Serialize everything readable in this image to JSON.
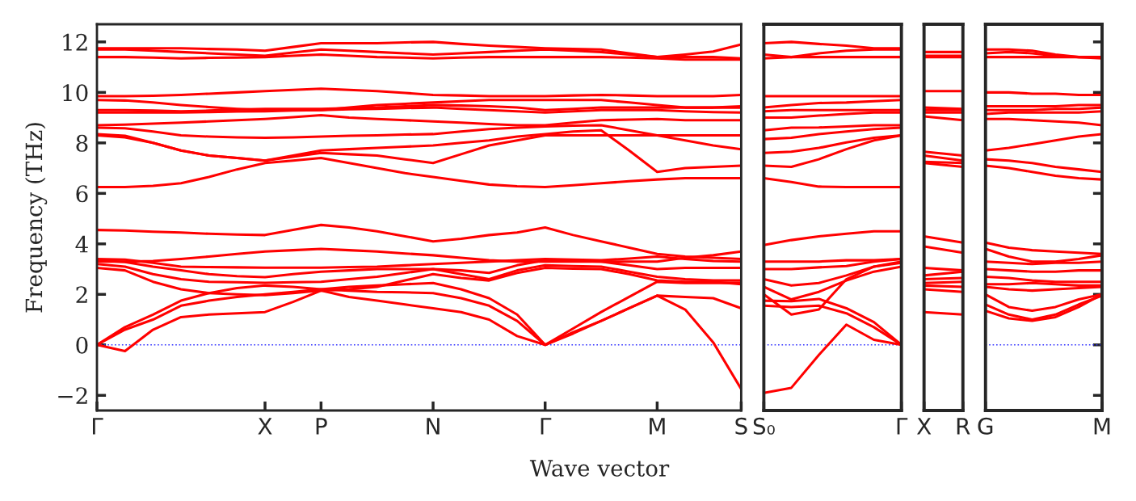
{
  "chart_data": [
    {
      "type": "line",
      "ylabel": "Frequency (THz)",
      "xlabel": "Wave vector",
      "categories": [
        "Γ",
        null,
        null,
        null,
        null,
        null,
        "X",
        null,
        "P",
        null,
        null,
        null,
        "N",
        null,
        null,
        null,
        "Γ",
        null,
        null,
        null,
        "M",
        null,
        null,
        "S"
      ],
      "ylim": [
        -2.6,
        12.7
      ],
      "yticks": [
        -2,
        0,
        2,
        4,
        6,
        8,
        10,
        12
      ],
      "ref_lines": [
        {
          "axis": "y",
          "value": 0,
          "color": "#3333ff",
          "line_style": "dotted"
        }
      ],
      "series": [
        {
          "color": "#ff0000",
          "values": [
            0,
            -0.25,
            0.6,
            1.1,
            1.2,
            1.25,
            1.3,
            1.7,
            2.15,
            1.9,
            1.75,
            1.6,
            1.45,
            1.3,
            1.0,
            0.35,
            0,
            0.45,
            0.95,
            1.45,
            1.95,
            1.4,
            0.1,
            -1.75
          ]
        },
        {
          "color": "#ff0000",
          "values": [
            0,
            0.6,
            1.0,
            1.55,
            1.75,
            1.9,
            2.0,
            2.1,
            2.2,
            2.15,
            2.1,
            2.08,
            2.05,
            1.85,
            1.55,
            0.95,
            0,
            0.5,
            0.95,
            1.45,
            1.95,
            1.9,
            1.85,
            1.45
          ]
        },
        {
          "color": "#ff0000",
          "values": [
            0,
            0.7,
            1.2,
            1.75,
            2.05,
            2.25,
            2.35,
            2.3,
            2.2,
            2.3,
            2.35,
            2.4,
            2.45,
            2.2,
            1.85,
            1.2,
            0,
            0.65,
            1.3,
            1.9,
            2.5,
            2.45,
            2.45,
            2.45
          ]
        },
        {
          "color": "#ff0000",
          "values": [
            3.05,
            2.95,
            2.5,
            2.2,
            2.05,
            2.0,
            1.97,
            2.05,
            2.15,
            2.2,
            2.3,
            2.55,
            2.8,
            2.65,
            2.55,
            2.85,
            3.05,
            3.02,
            3.0,
            2.8,
            2.55,
            2.5,
            2.5,
            2.4
          ]
        },
        {
          "color": "#ff0000",
          "values": [
            3.2,
            3.1,
            2.8,
            2.6,
            2.5,
            2.48,
            2.46,
            2.48,
            2.5,
            2.6,
            2.7,
            2.85,
            3.0,
            2.8,
            2.6,
            2.95,
            3.15,
            3.12,
            3.1,
            2.9,
            2.7,
            2.6,
            2.55,
            2.55
          ]
        },
        {
          "color": "#ff0000",
          "values": [
            3.35,
            3.28,
            3.1,
            2.95,
            2.8,
            2.72,
            2.68,
            2.8,
            2.9,
            2.95,
            3.0,
            3.0,
            3.0,
            2.95,
            2.85,
            3.15,
            3.35,
            3.32,
            3.3,
            3.15,
            3.0,
            3.05,
            3.05,
            3.05
          ]
        },
        {
          "color": "#ff0000",
          "values": [
            3.4,
            3.38,
            3.25,
            3.1,
            3.08,
            3.07,
            3.06,
            3.06,
            3.06,
            3.08,
            3.1,
            3.15,
            3.2,
            3.25,
            3.3,
            3.35,
            3.4,
            3.38,
            3.35,
            3.42,
            3.5,
            3.4,
            3.32,
            3.3
          ]
        },
        {
          "color": "#ff0000",
          "values": [
            3.3,
            3.3,
            3.32,
            3.4,
            3.5,
            3.6,
            3.7,
            3.75,
            3.8,
            3.75,
            3.7,
            3.62,
            3.55,
            3.45,
            3.35,
            3.3,
            3.3,
            3.3,
            3.3,
            3.3,
            3.3,
            3.45,
            3.55,
            3.7
          ]
        },
        {
          "color": "#ff0000",
          "values": [
            4.55,
            4.53,
            4.48,
            4.45,
            4.4,
            4.37,
            4.35,
            4.55,
            4.75,
            4.65,
            4.5,
            4.3,
            4.1,
            4.2,
            4.35,
            4.45,
            4.65,
            4.35,
            4.1,
            3.85,
            3.6,
            3.5,
            3.45,
            3.4
          ]
        },
        {
          "color": "#ff0000",
          "values": [
            6.25,
            6.25,
            6.3,
            6.4,
            6.65,
            6.95,
            7.2,
            7.3,
            7.4,
            7.2,
            7.0,
            6.8,
            6.65,
            6.5,
            6.35,
            6.28,
            6.25,
            6.32,
            6.4,
            6.48,
            6.55,
            6.6,
            6.6,
            6.6
          ]
        },
        {
          "color": "#ff0000",
          "values": [
            8.3,
            8.22,
            8.0,
            7.7,
            7.5,
            7.4,
            7.3,
            7.45,
            7.6,
            7.55,
            7.5,
            7.35,
            7.2,
            7.55,
            7.9,
            8.1,
            8.3,
            8.3,
            8.3,
            8.3,
            8.3,
            8.3,
            8.3,
            8.3
          ]
        },
        {
          "color": "#ff0000",
          "values": [
            8.35,
            8.28,
            8.0,
            7.7,
            7.5,
            7.4,
            7.3,
            7.5,
            7.7,
            7.75,
            7.8,
            7.85,
            7.9,
            8.0,
            8.1,
            8.25,
            8.35,
            8.45,
            8.5,
            7.7,
            6.85,
            7.0,
            7.05,
            7.1
          ]
        },
        {
          "color": "#ff0000",
          "values": [
            8.6,
            8.58,
            8.45,
            8.3,
            8.25,
            8.22,
            8.2,
            8.22,
            8.25,
            8.28,
            8.3,
            8.33,
            8.35,
            8.45,
            8.55,
            8.6,
            8.65,
            8.68,
            8.7,
            8.5,
            8.3,
            8.1,
            7.9,
            7.75
          ]
        },
        {
          "color": "#ff0000",
          "values": [
            8.7,
            8.72,
            8.76,
            8.8,
            8.85,
            8.9,
            8.95,
            9.02,
            9.1,
            9.0,
            8.95,
            8.9,
            8.85,
            8.8,
            8.75,
            8.7,
            8.7,
            8.8,
            8.9,
            8.92,
            8.95,
            8.9,
            8.9,
            8.9
          ]
        },
        {
          "color": "#ff0000",
          "values": [
            9.2,
            9.2,
            9.2,
            9.2,
            9.22,
            9.24,
            9.25,
            9.28,
            9.3,
            9.33,
            9.35,
            9.38,
            9.4,
            9.35,
            9.3,
            9.25,
            9.2,
            9.25,
            9.3,
            9.3,
            9.3,
            9.25,
            9.22,
            9.2
          ]
        },
        {
          "color": "#ff0000",
          "values": [
            9.3,
            9.3,
            9.28,
            9.25,
            9.28,
            9.32,
            9.35,
            9.35,
            9.35,
            9.38,
            9.4,
            9.45,
            9.5,
            9.48,
            9.45,
            9.4,
            9.3,
            9.35,
            9.4,
            9.4,
            9.4,
            9.4,
            9.4,
            9.4
          ]
        },
        {
          "color": "#ff0000",
          "values": [
            9.7,
            9.68,
            9.6,
            9.5,
            9.42,
            9.35,
            9.3,
            9.3,
            9.3,
            9.4,
            9.5,
            9.55,
            9.6,
            9.65,
            9.7,
            9.7,
            9.7,
            9.7,
            9.7,
            9.6,
            9.5,
            9.4,
            9.4,
            9.45
          ]
        },
        {
          "color": "#ff0000",
          "values": [
            9.85,
            9.85,
            9.87,
            9.9,
            9.95,
            10.0,
            10.05,
            10.1,
            10.15,
            10.1,
            10.05,
            9.98,
            9.9,
            9.88,
            9.85,
            9.85,
            9.85,
            9.88,
            9.9,
            9.88,
            9.85,
            9.85,
            9.85,
            9.9
          ]
        },
        {
          "color": "#ff0000",
          "values": [
            11.4,
            11.4,
            11.38,
            11.35,
            11.37,
            11.38,
            11.4,
            11.45,
            11.5,
            11.45,
            11.4,
            11.38,
            11.35,
            11.38,
            11.4,
            11.4,
            11.4,
            11.4,
            11.4,
            11.38,
            11.35,
            11.3,
            11.3,
            11.3
          ]
        },
        {
          "color": "#ff0000",
          "values": [
            11.7,
            11.7,
            11.65,
            11.6,
            11.55,
            11.5,
            11.45,
            11.58,
            11.7,
            11.65,
            11.6,
            11.55,
            11.5,
            11.55,
            11.6,
            11.65,
            11.7,
            11.65,
            11.6,
            11.5,
            11.4,
            11.4,
            11.4,
            11.35
          ]
        },
        {
          "color": "#ff0000",
          "values": [
            11.75,
            11.75,
            11.75,
            11.75,
            11.72,
            11.7,
            11.65,
            11.8,
            11.95,
            11.95,
            11.95,
            11.98,
            12.0,
            11.92,
            11.85,
            11.8,
            11.75,
            11.72,
            11.7,
            11.55,
            11.4,
            11.5,
            11.62,
            11.9
          ]
        }
      ]
    },
    {
      "type": "line",
      "tick_labels": "x",
      "categories": [
        "S₀",
        null,
        null,
        null,
        null,
        "Γ"
      ],
      "ylim": [
        -2.6,
        12.7
      ],
      "ref_lines": [
        {
          "axis": "y",
          "value": 0,
          "color": "#3333ff",
          "line_style": "dotted"
        }
      ],
      "series": [
        {
          "color": "#ff0000",
          "values": [
            -1.9,
            -1.7,
            -0.4,
            0.8,
            0.2,
            0
          ]
        },
        {
          "color": "#ff0000",
          "values": [
            1.55,
            1.5,
            1.55,
            1.25,
            0.7,
            0
          ]
        },
        {
          "color": "#ff0000",
          "values": [
            1.75,
            1.73,
            1.82,
            1.45,
            0.9,
            0
          ]
        },
        {
          "color": "#ff0000",
          "values": [
            2.0,
            1.2,
            1.4,
            2.6,
            3.1,
            3.25
          ]
        },
        {
          "color": "#ff0000",
          "values": [
            2.3,
            1.8,
            2.1,
            2.55,
            2.9,
            3.1
          ]
        },
        {
          "color": "#ff0000",
          "values": [
            2.6,
            2.35,
            2.45,
            2.75,
            3.1,
            3.3
          ]
        },
        {
          "color": "#ff0000",
          "values": [
            3.0,
            3.0,
            3.07,
            3.12,
            3.3,
            3.4
          ]
        },
        {
          "color": "#ff0000",
          "values": [
            3.3,
            3.3,
            3.3,
            3.35,
            3.35,
            3.4
          ]
        },
        {
          "color": "#ff0000",
          "values": [
            3.95,
            4.15,
            4.3,
            4.4,
            4.5,
            4.5
          ]
        },
        {
          "color": "#ff0000",
          "values": [
            6.6,
            6.45,
            6.27,
            6.25,
            6.25,
            6.25
          ]
        },
        {
          "color": "#ff0000",
          "values": [
            7.1,
            7.05,
            7.35,
            7.75,
            8.1,
            8.3
          ]
        },
        {
          "color": "#ff0000",
          "values": [
            7.6,
            7.65,
            7.8,
            8.02,
            8.2,
            8.3
          ]
        },
        {
          "color": "#ff0000",
          "values": [
            8.15,
            8.2,
            8.35,
            8.45,
            8.55,
            8.6
          ]
        },
        {
          "color": "#ff0000",
          "values": [
            8.5,
            8.6,
            8.61,
            8.65,
            8.7,
            8.7
          ]
        },
        {
          "color": "#ff0000",
          "values": [
            9.0,
            9.0,
            9.08,
            9.15,
            9.2,
            9.2
          ]
        },
        {
          "color": "#ff0000",
          "values": [
            9.25,
            9.3,
            9.3,
            9.3,
            9.3,
            9.3
          ]
        },
        {
          "color": "#ff0000",
          "values": [
            9.4,
            9.5,
            9.58,
            9.6,
            9.65,
            9.7
          ]
        },
        {
          "color": "#ff0000",
          "values": [
            9.85,
            9.85,
            9.85,
            9.85,
            9.85,
            9.85
          ]
        },
        {
          "color": "#ff0000",
          "values": [
            11.35,
            11.4,
            11.4,
            11.4,
            11.4,
            11.4
          ]
        },
        {
          "color": "#ff0000",
          "values": [
            11.5,
            11.4,
            11.55,
            11.65,
            11.7,
            11.7
          ]
        },
        {
          "color": "#ff0000",
          "values": [
            11.95,
            12.0,
            11.92,
            11.85,
            11.75,
            11.75
          ]
        }
      ]
    },
    {
      "type": "line",
      "tick_labels": "x",
      "categories": [
        "X",
        "R"
      ],
      "ylim": [
        -2.6,
        12.7
      ],
      "series": [
        {
          "color": "#ff0000",
          "values": [
            11.6,
            11.6
          ]
        },
        {
          "color": "#ff0000",
          "values": [
            11.45,
            11.45
          ]
        },
        {
          "color": "#ff0000",
          "values": [
            11.4,
            11.4
          ]
        },
        {
          "color": "#ff0000",
          "values": [
            10.05,
            10.05
          ]
        },
        {
          "color": "#ff0000",
          "values": [
            9.4,
            9.35
          ]
        },
        {
          "color": "#ff0000",
          "values": [
            9.3,
            9.3
          ]
        },
        {
          "color": "#ff0000",
          "values": [
            9.2,
            9.2
          ]
        },
        {
          "color": "#ff0000",
          "values": [
            9.05,
            8.9
          ]
        },
        {
          "color": "#ff0000",
          "values": [
            7.65,
            7.5
          ]
        },
        {
          "color": "#ff0000",
          "values": [
            7.5,
            7.3
          ]
        },
        {
          "color": "#ff0000",
          "values": [
            7.25,
            7.2
          ]
        },
        {
          "color": "#ff0000",
          "values": [
            7.2,
            7.05
          ]
        },
        {
          "color": "#ff0000",
          "values": [
            4.3,
            4.05
          ]
        },
        {
          "color": "#ff0000",
          "values": [
            3.9,
            3.65
          ]
        },
        {
          "color": "#ff0000",
          "values": [
            3.05,
            2.95
          ]
        },
        {
          "color": "#ff0000",
          "values": [
            2.75,
            2.9
          ]
        },
        {
          "color": "#ff0000",
          "values": [
            2.6,
            2.65
          ]
        },
        {
          "color": "#ff0000",
          "values": [
            2.45,
            2.5
          ]
        },
        {
          "color": "#ff0000",
          "values": [
            2.35,
            2.3
          ]
        },
        {
          "color": "#ff0000",
          "values": [
            2.2,
            2.1
          ]
        },
        {
          "color": "#ff0000",
          "values": [
            1.3,
            1.2
          ]
        }
      ]
    },
    {
      "type": "line",
      "tick_labels": "x",
      "categories": [
        "G",
        null,
        null,
        null,
        null,
        "M"
      ],
      "ylim": [
        -2.6,
        12.7
      ],
      "yticks": [
        -2,
        0,
        2,
        4,
        6,
        8,
        10,
        12
      ],
      "ref_lines": [
        {
          "axis": "y",
          "value": 0,
          "color": "#3333ff",
          "line_style": "dotted"
        }
      ],
      "series": [
        {
          "color": "#ff0000",
          "values": [
            11.7,
            11.7,
            11.65,
            11.5,
            11.4,
            11.35
          ]
        },
        {
          "color": "#ff0000",
          "values": [
            11.55,
            11.6,
            11.55,
            11.45,
            11.4,
            11.4
          ]
        },
        {
          "color": "#ff0000",
          "values": [
            11.4,
            11.4,
            11.4,
            11.4,
            11.4,
            11.4
          ]
        },
        {
          "color": "#ff0000",
          "values": [
            10.0,
            10.0,
            9.95,
            9.95,
            9.9,
            9.9
          ]
        },
        {
          "color": "#ff0000",
          "values": [
            9.45,
            9.45,
            9.45,
            9.45,
            9.5,
            9.5
          ]
        },
        {
          "color": "#ff0000",
          "values": [
            9.3,
            9.3,
            9.3,
            9.35,
            9.35,
            9.4
          ]
        },
        {
          "color": "#ff0000",
          "values": [
            9.15,
            9.2,
            9.2,
            9.2,
            9.2,
            9.25
          ]
        },
        {
          "color": "#ff0000",
          "values": [
            8.95,
            8.95,
            8.9,
            8.85,
            8.8,
            8.7
          ]
        },
        {
          "color": "#ff0000",
          "values": [
            7.7,
            7.8,
            7.95,
            8.1,
            8.25,
            8.35
          ]
        },
        {
          "color": "#ff0000",
          "values": [
            7.35,
            7.3,
            7.2,
            7.05,
            6.95,
            6.85
          ]
        },
        {
          "color": "#ff0000",
          "values": [
            7.1,
            7.0,
            6.85,
            6.7,
            6.6,
            6.55
          ]
        },
        {
          "color": "#ff0000",
          "values": [
            4.05,
            3.85,
            3.75,
            3.7,
            3.65,
            3.6
          ]
        },
        {
          "color": "#ff0000",
          "values": [
            3.8,
            3.5,
            3.3,
            3.3,
            3.4,
            3.55
          ]
        },
        {
          "color": "#ff0000",
          "values": [
            3.3,
            3.25,
            3.2,
            3.25,
            3.25,
            3.3
          ]
        },
        {
          "color": "#ff0000",
          "values": [
            3.0,
            2.95,
            2.9,
            2.9,
            2.95,
            2.95
          ]
        },
        {
          "color": "#ff0000",
          "values": [
            2.7,
            2.65,
            2.55,
            2.5,
            2.5,
            2.5
          ]
        },
        {
          "color": "#ff0000",
          "values": [
            2.4,
            2.4,
            2.45,
            2.4,
            2.35,
            2.35
          ]
        },
        {
          "color": "#ff0000",
          "values": [
            2.3,
            2.2,
            2.15,
            2.2,
            2.25,
            2.3
          ]
        },
        {
          "color": "#ff0000",
          "values": [
            2.0,
            1.5,
            1.35,
            1.5,
            1.8,
            2.0
          ]
        },
        {
          "color": "#ff0000",
          "values": [
            1.6,
            1.2,
            1.0,
            1.2,
            1.6,
            1.95
          ]
        },
        {
          "color": "#ff0000",
          "values": [
            1.35,
            1.05,
            0.95,
            1.1,
            1.5,
            2.0
          ]
        }
      ]
    }
  ]
}
